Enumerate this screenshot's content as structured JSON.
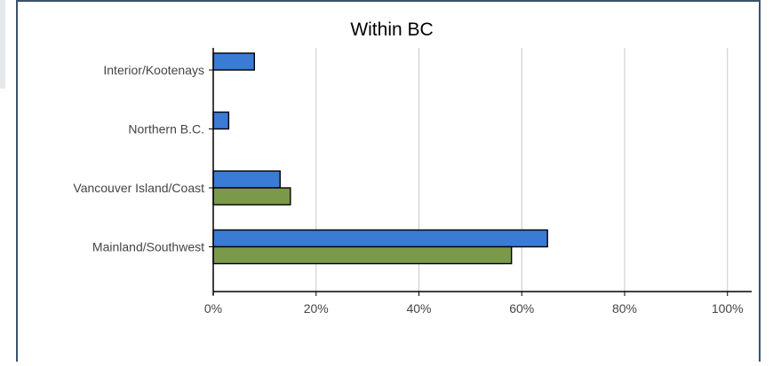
{
  "chart_data": {
    "type": "bar",
    "orientation": "horizontal",
    "title": "Within BC",
    "categories": [
      "Interior/Kootenays",
      "Northern B.C.",
      "Vancouver Island/Coast",
      "Mainland/Southwest"
    ],
    "series": [
      {
        "color": "#3a7bd5",
        "values": [
          8,
          3,
          13,
          65
        ]
      },
      {
        "color": "#7a9a4a",
        "values": [
          null,
          null,
          15,
          58
        ]
      }
    ],
    "x_ticks": [
      "0%",
      "20%",
      "40%",
      "60%",
      "80%",
      "100%"
    ],
    "xlim": [
      0,
      100
    ],
    "grid": "vertical",
    "legend": "none"
  }
}
